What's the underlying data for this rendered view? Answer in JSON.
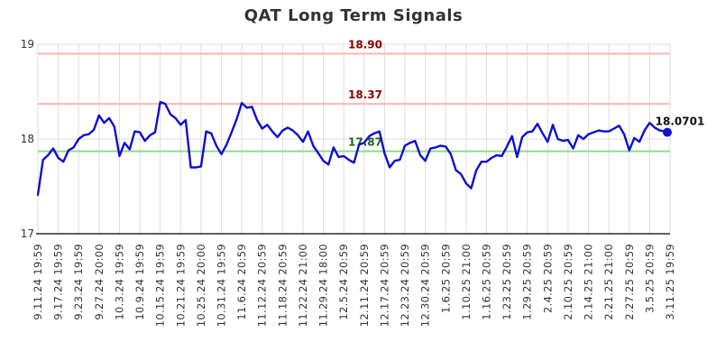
{
  "title": "QAT Long Term Signals",
  "colors": {
    "title_text": "#333333",
    "axis_text": "#333333",
    "gridline": "#dddddd",
    "axis_line": "#2b2b2b",
    "series_line": "#0f0fd0",
    "resistance_line": "#ffb6b6",
    "resistance_label": "#8b0000",
    "support_line": "#93d793",
    "support_label": "#1a661a",
    "last_point_label": "#111111"
  },
  "chart_data": {
    "type": "line",
    "title": "QAT Long Term Signals",
    "xlabel": "",
    "ylabel": "",
    "ylim": [
      17,
      19
    ],
    "yticks": [
      "17",
      "18",
      "19"
    ],
    "grid": true,
    "x_labels": [
      "9.11.24 19:59",
      "9.17.24 19:59",
      "9.23.24 19:59",
      "9.27.24 20:00",
      "10.3.24 19:59",
      "10.9.24 19:59",
      "10.15.24 19:59",
      "10.21.24 19:59",
      "10.25.24 20:00",
      "10.31.24 19:59",
      "11.6.24 20:59",
      "11.12.24 20:59",
      "11.18.24 20:59",
      "11.22.24 21:00",
      "11.29.24 18:00",
      "12.5.24 20:59",
      "12.11.24 20:59",
      "12.17.24 20:59",
      "12.23.24 20:59",
      "12.30.24 20:59",
      "1.6.25 20:59",
      "1.10.25 21:00",
      "1.16.25 20:59",
      "1.23.25 20:59",
      "1.29.25 20:59",
      "2.4.25 20:59",
      "2.10.25 20:59",
      "2.14.25 21:00",
      "2.21.25 21:00",
      "2.27.25 20:59",
      "3.5.25 20:59",
      "3.11.25 19:59"
    ],
    "labels_every_n_points": 4,
    "values": [
      17.41,
      17.78,
      17.83,
      17.9,
      17.8,
      17.76,
      17.88,
      17.91,
      18.0,
      18.04,
      18.05,
      18.1,
      18.25,
      18.17,
      18.22,
      18.13,
      17.82,
      17.96,
      17.89,
      18.08,
      18.07,
      17.98,
      18.04,
      18.07,
      18.39,
      18.37,
      18.26,
      18.22,
      18.15,
      18.2,
      17.7,
      17.7,
      17.71,
      18.08,
      18.06,
      17.93,
      17.84,
      17.94,
      18.07,
      18.21,
      18.38,
      18.33,
      18.34,
      18.2,
      18.11,
      18.15,
      18.08,
      18.02,
      18.09,
      18.12,
      18.09,
      18.04,
      17.97,
      18.08,
      17.93,
      17.85,
      17.77,
      17.73,
      17.91,
      17.81,
      17.82,
      17.78,
      17.75,
      17.94,
      17.96,
      18.03,
      18.06,
      18.08,
      17.85,
      17.7,
      17.77,
      17.78,
      17.93,
      17.96,
      17.98,
      17.83,
      17.77,
      17.9,
      17.91,
      17.93,
      17.92,
      17.84,
      17.67,
      17.63,
      17.53,
      17.48,
      17.67,
      17.76,
      17.76,
      17.8,
      17.83,
      17.82,
      17.92,
      18.03,
      17.81,
      18.02,
      18.07,
      18.08,
      18.16,
      18.06,
      17.97,
      18.15,
      18.0,
      17.98,
      17.99,
      17.9,
      18.04,
      18.0,
      18.05,
      18.07,
      18.09,
      18.08,
      18.08,
      18.11,
      18.14,
      18.05,
      17.88,
      18.01,
      17.97,
      18.09,
      18.17,
      18.12,
      18.09,
      18.08,
      18.0701
    ],
    "reference_lines": [
      {
        "name": "resistance-upper",
        "value": 18.9,
        "label": "18.90",
        "kind": "resistance"
      },
      {
        "name": "resistance-lower",
        "value": 18.37,
        "label": "18.37",
        "kind": "resistance"
      },
      {
        "name": "support",
        "value": 17.87,
        "label": "17.87",
        "kind": "support"
      }
    ],
    "last_point": {
      "value": 18.0701,
      "label": "18.0701"
    },
    "legend": null
  }
}
